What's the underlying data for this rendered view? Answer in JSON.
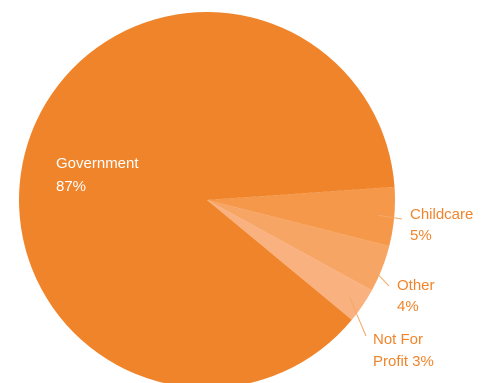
{
  "chart_data": {
    "type": "pie",
    "title": "",
    "slices": [
      {
        "name": "Government",
        "pct_label": "87%",
        "value": 87,
        "color": "#f0842a",
        "label_pos": "inside-left"
      },
      {
        "name": "Childcare",
        "pct_label": "5%",
        "value": 5,
        "color": "#f5984a",
        "label_pos": "outside-right"
      },
      {
        "name": "Other",
        "pct_label": "4%",
        "value": 4,
        "color": "#f7a565",
        "label_pos": "outside-right"
      },
      {
        "name": "Not For Profit",
        "pct_label": "3%",
        "value": 3,
        "color": "#f9b27f",
        "label_pos": "outside-right"
      }
    ],
    "leader_line_color": "#f4a868",
    "legend": "none"
  }
}
